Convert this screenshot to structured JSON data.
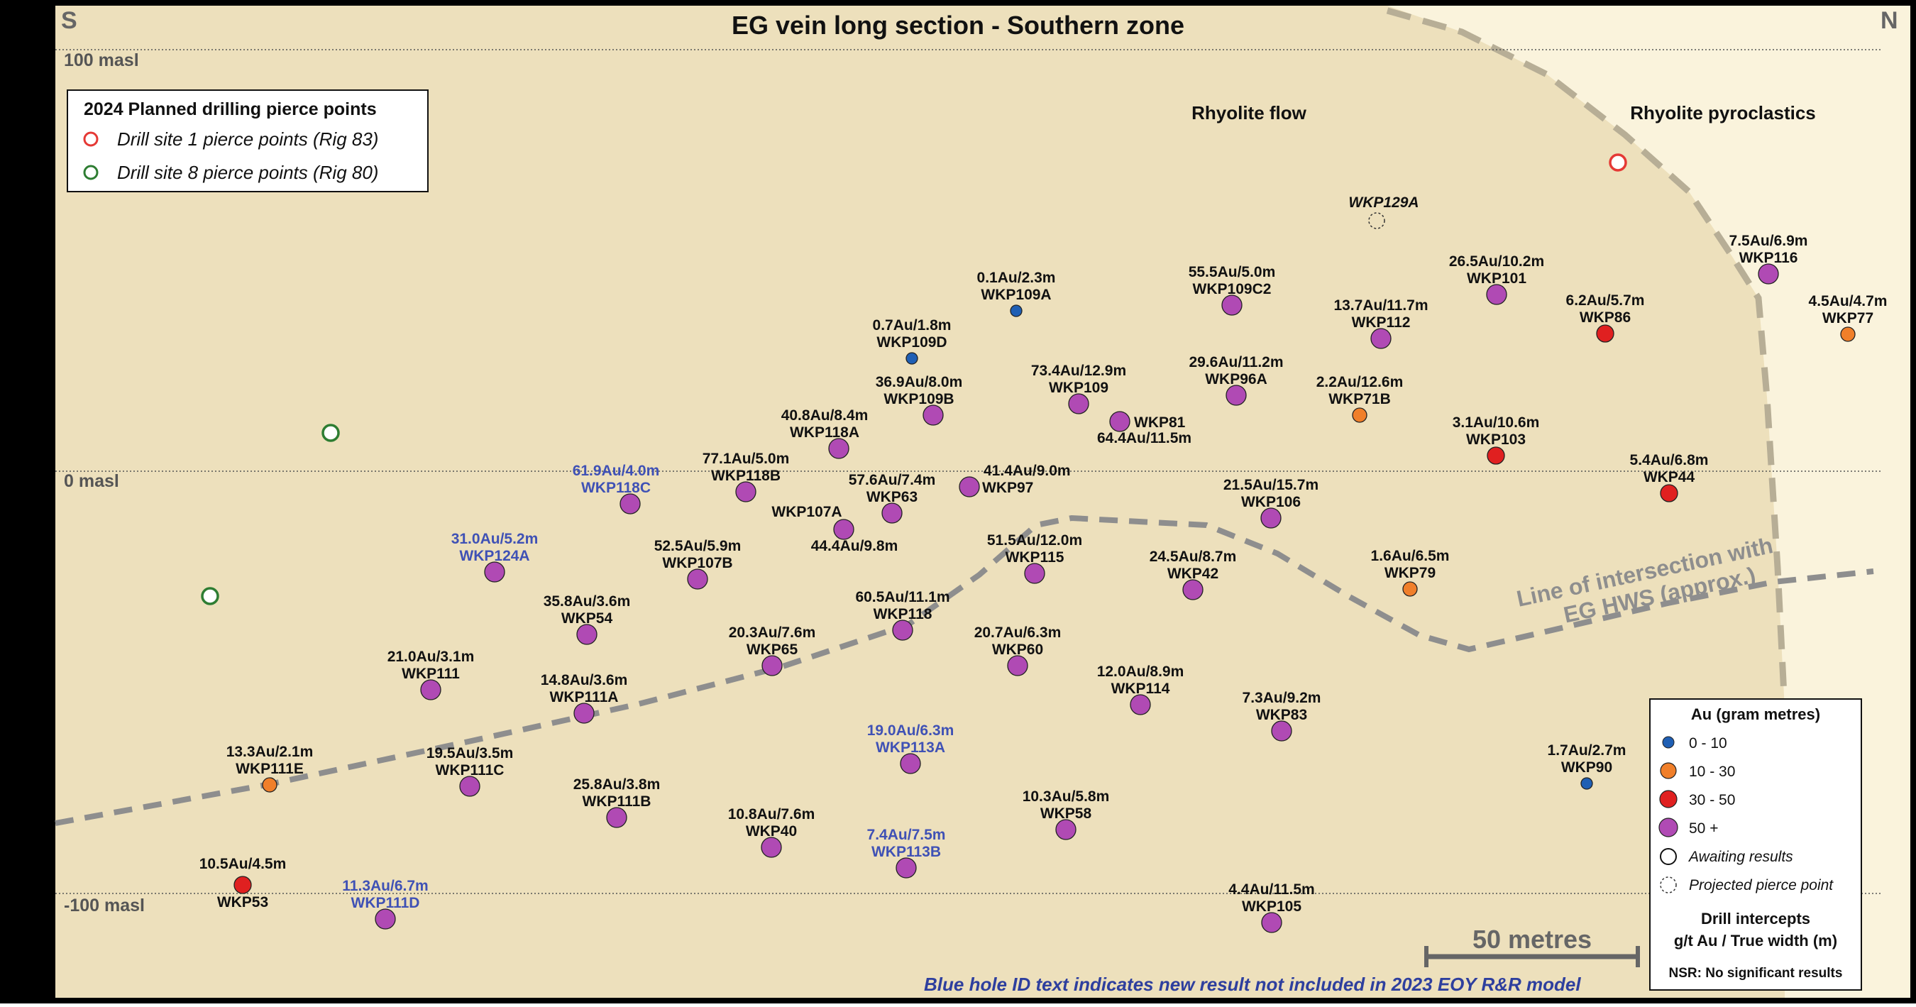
{
  "title": "EG vein long section - Southern zone",
  "compass": {
    "left": "S",
    "right": "N"
  },
  "elevations": [
    {
      "label": "100 masl",
      "value": 100
    },
    {
      "label": "0 masl",
      "value": 0
    },
    {
      "label": "-100 masl",
      "value": -100
    }
  ],
  "units": {
    "rhyolite_flow": "Rhyolite flow",
    "rhyolite_pyroclastics": "Rhyolite pyroclastics"
  },
  "intersection_label": {
    "line1": "Line of intersection with",
    "line2": "EG HWS (approx.)"
  },
  "planned_legend": {
    "title": "2024 Planned drilling pierce points",
    "items": [
      {
        "label": "Drill site 1 pierce points (Rig 83)",
        "color": "#e53935"
      },
      {
        "label": "Drill site 8 pierce points (Rig 80)",
        "color": "#2e7d32"
      }
    ]
  },
  "au_legend": {
    "title": "Au (gram metres)",
    "items": [
      {
        "label": "0 - 10",
        "color": "#1f5fb4",
        "style": "dot"
      },
      {
        "label": "10 - 30",
        "color": "#f07f2a",
        "style": "dot"
      },
      {
        "label": "30 - 50",
        "color": "#e02020",
        "style": "dot"
      },
      {
        "label": "50 +",
        "color": "#b04ab4",
        "style": "dot"
      },
      {
        "label": "Awaiting results",
        "color": "#ffffff",
        "style": "ring"
      },
      {
        "label": "Projected pierce point",
        "color": "none",
        "style": "dashed"
      }
    ],
    "intercepts_line1": "Drill intercepts",
    "intercepts_line2": "g/t Au / True width (m)",
    "nsr": "NSR: No significant results"
  },
  "scale_bar": "50 metres",
  "footnote": "Blue hole ID text indicates new result not included in 2023 EOY R&R model",
  "holes": [
    {
      "id": "WKP109A",
      "result": "0.1Au/2.3m",
      "cls": "low",
      "new": false
    },
    {
      "id": "WKP109D",
      "result": "0.7Au/1.8m",
      "cls": "low",
      "new": false
    },
    {
      "id": "WKP109C2",
      "result": "55.5Au/5.0m",
      "cls": "high",
      "new": false
    },
    {
      "id": "WKP112",
      "result": "13.7Au/11.7m",
      "cls": "high",
      "new": false
    },
    {
      "id": "WKP101",
      "result": "26.5Au/10.2m",
      "cls": "high",
      "new": false
    },
    {
      "id": "WKP116",
      "result": "7.5Au/6.9m",
      "cls": "high",
      "new": false
    },
    {
      "id": "WKP77",
      "result": "4.5Au/4.7m",
      "cls": "mid",
      "new": false
    },
    {
      "id": "WKP86",
      "result": "6.2Au/5.7m",
      "cls": "red",
      "new": false
    },
    {
      "id": "WKP109",
      "result": "73.4Au/12.9m",
      "cls": "high",
      "new": false
    },
    {
      "id": "WKP96A",
      "result": "29.6Au/11.2m",
      "cls": "high",
      "new": false
    },
    {
      "id": "WKP71B",
      "result": "2.2Au/12.6m",
      "cls": "mid",
      "new": false
    },
    {
      "id": "WKP109B",
      "result": "36.9Au/8.0m",
      "cls": "high",
      "new": false
    },
    {
      "id": "WKP81",
      "result": "64.4Au/11.5m",
      "cls": "high",
      "new": false
    },
    {
      "id": "WKP103",
      "result": "3.1Au/10.6m",
      "cls": "red",
      "new": false
    },
    {
      "id": "WKP118A",
      "result": "40.8Au/8.4m",
      "cls": "high",
      "new": false
    },
    {
      "id": "WKP118B",
      "result": "77.1Au/5.0m",
      "cls": "high",
      "new": false
    },
    {
      "id": "WKP97",
      "result": "41.4Au/9.0m",
      "cls": "high",
      "new": false
    },
    {
      "id": "WKP44",
      "result": "5.4Au/6.8m",
      "cls": "red",
      "new": false
    },
    {
      "id": "WKP118C",
      "result": "61.9Au/4.0m",
      "cls": "high",
      "new": true
    },
    {
      "id": "WKP63",
      "result": "57.6Au/7.4m",
      "cls": "high",
      "new": false
    },
    {
      "id": "WKP107A",
      "result": "44.4Au/9.8m",
      "cls": "high",
      "new": false
    },
    {
      "id": "WKP106",
      "result": "21.5Au/15.7m",
      "cls": "high",
      "new": false
    },
    {
      "id": "WKP124A",
      "result": "31.0Au/5.2m",
      "cls": "high",
      "new": true
    },
    {
      "id": "WKP107B",
      "result": "52.5Au/5.9m",
      "cls": "high",
      "new": false
    },
    {
      "id": "WKP115",
      "result": "51.5Au/12.0m",
      "cls": "high",
      "new": false
    },
    {
      "id": "WKP42",
      "result": "24.5Au/8.7m",
      "cls": "high",
      "new": false
    },
    {
      "id": "WKP79",
      "result": "1.6Au/6.5m",
      "cls": "mid",
      "new": false
    },
    {
      "id": "WKP54",
      "result": "35.8Au/3.6m",
      "cls": "high",
      "new": false
    },
    {
      "id": "WKP118",
      "result": "60.5Au/11.1m",
      "cls": "high",
      "new": false
    },
    {
      "id": "WKP65",
      "result": "20.3Au/7.6m",
      "cls": "high",
      "new": false
    },
    {
      "id": "WKP60",
      "result": "20.7Au/6.3m",
      "cls": "high",
      "new": false
    },
    {
      "id": "WKP111",
      "result": "21.0Au/3.1m",
      "cls": "high",
      "new": false
    },
    {
      "id": "WKP111A",
      "result": "14.8Au/3.6m",
      "cls": "high",
      "new": false
    },
    {
      "id": "WKP114",
      "result": "12.0Au/8.9m",
      "cls": "high",
      "new": false
    },
    {
      "id": "WKP83",
      "result": "7.3Au/9.2m",
      "cls": "high",
      "new": false
    },
    {
      "id": "WKP111E",
      "result": "13.3Au/2.1m",
      "cls": "mid",
      "new": false
    },
    {
      "id": "WKP111C",
      "result": "19.5Au/3.5m",
      "cls": "high",
      "new": false
    },
    {
      "id": "WKP113A",
      "result": "19.0Au/6.3m",
      "cls": "high",
      "new": true
    },
    {
      "id": "WKP90",
      "result": "1.7Au/2.7m",
      "cls": "low",
      "new": false
    },
    {
      "id": "WKP111B",
      "result": "25.8Au/3.8m",
      "cls": "high",
      "new": false
    },
    {
      "id": "WKP40",
      "result": "10.8Au/7.6m",
      "cls": "high",
      "new": false
    },
    {
      "id": "WKP58",
      "result": "10.3Au/5.8m",
      "cls": "high",
      "new": false
    },
    {
      "id": "WKP113B",
      "result": "7.4Au/7.5m",
      "cls": "high",
      "new": true
    },
    {
      "id": "WKP53",
      "result": "10.5Au/4.5m",
      "cls": "red",
      "new": false
    },
    {
      "id": "WKP111D",
      "result": "11.3Au/6.7m",
      "cls": "high",
      "new": true
    },
    {
      "id": "WKP105",
      "result": "4.4Au/11.5m",
      "cls": "high",
      "new": false
    }
  ],
  "projected": [
    {
      "id": "WKP129A"
    }
  ]
}
